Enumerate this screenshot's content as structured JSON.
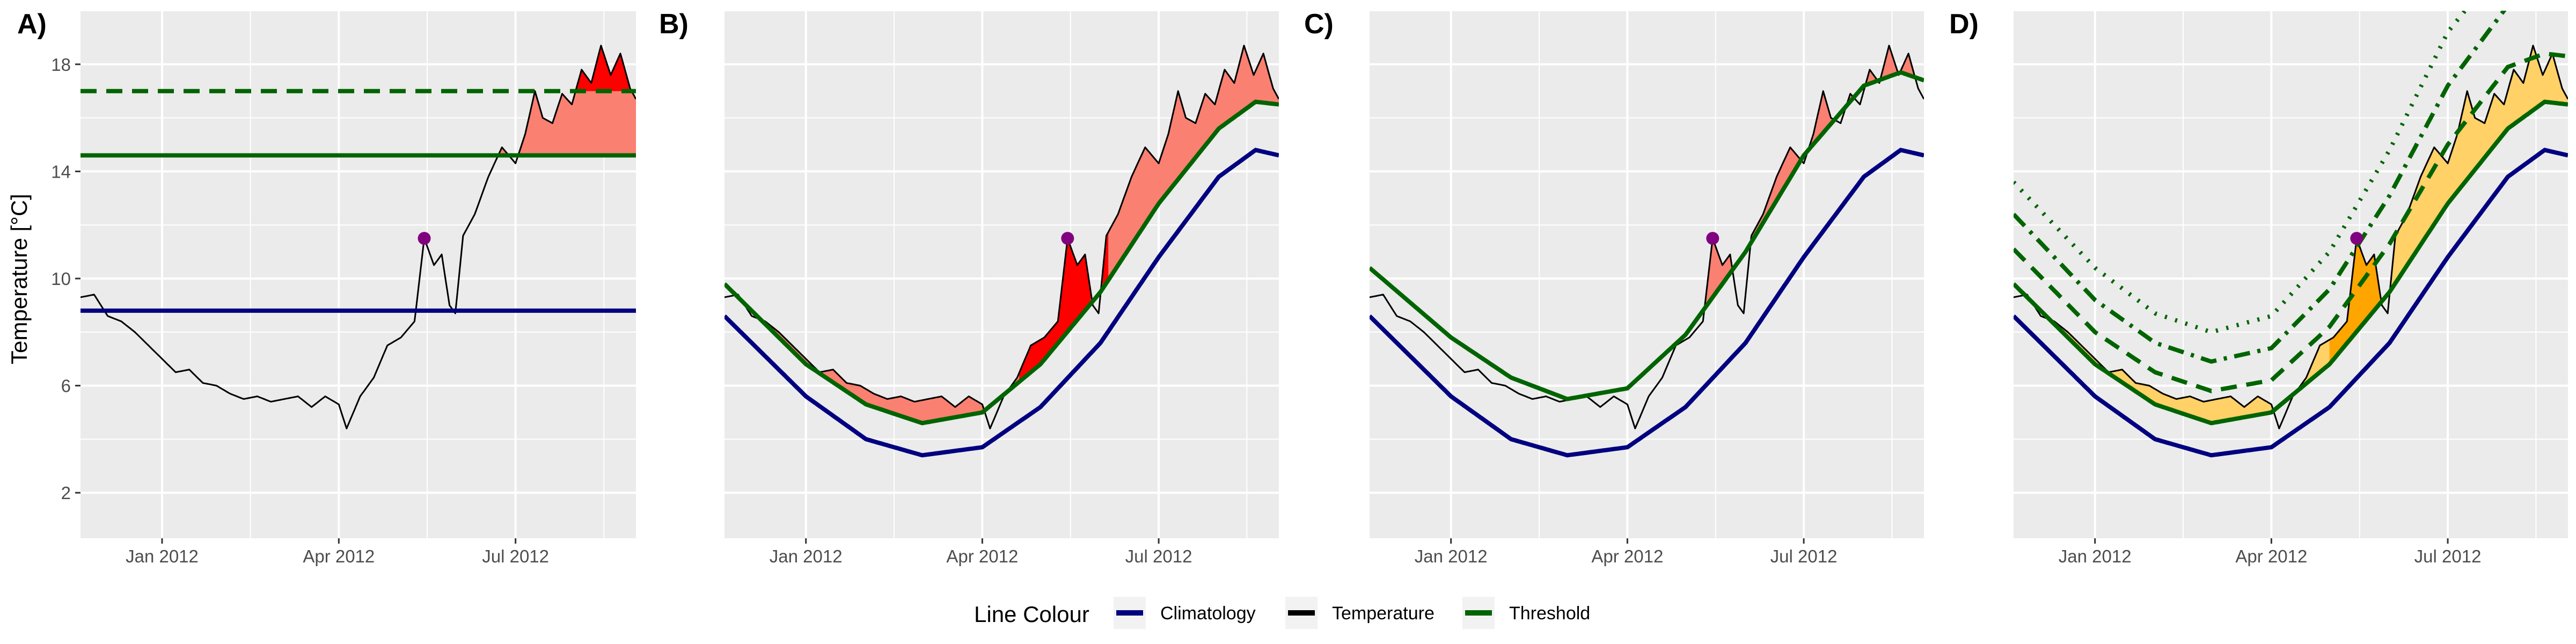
{
  "figure": {
    "ylabel": "Temperature [°C]",
    "legend": {
      "title": "Line Colour",
      "position": "bottom",
      "items": [
        {
          "label": "Climatology",
          "color": "#000080"
        },
        {
          "label": "Temperature",
          "color": "#000000"
        },
        {
          "label": "Threshold",
          "color": "#006400"
        }
      ]
    },
    "colors": {
      "panel_bg": "#ebebeb",
      "grid": "#ffffff",
      "event_light": "#fa8072",
      "event_strong": "#ff0000",
      "event_orange": "#ffa500",
      "event_gold": "#ffd166",
      "marker": "#800080"
    }
  },
  "chart_data": [
    {
      "panel": "A)",
      "type": "line",
      "x_type": "date",
      "xlim": [
        "2011-11-20",
        "2012-09-01"
      ],
      "ylim": [
        0.3,
        20.0
      ],
      "xticks": [
        {
          "date": "2012-01-01",
          "label": "Jan 2012"
        },
        {
          "date": "2012-04-01",
          "label": "Apr 2012"
        },
        {
          "date": "2012-07-01",
          "label": "Jul 2012"
        }
      ],
      "yticks": [
        2,
        6,
        10,
        14,
        18
      ],
      "show_y_tick_labels": true,
      "grid": true,
      "series": [
        {
          "name": "Climatology",
          "kind": "constant",
          "value": 8.8,
          "color": "#000080",
          "style": "solid"
        },
        {
          "name": "Threshold",
          "kind": "constant",
          "value": 14.6,
          "color": "#006400",
          "style": "solid"
        },
        {
          "kind": "constant",
          "value": 17.0,
          "color": "#006400",
          "style": "dashed"
        }
      ],
      "events": [
        {
          "from_level": 14.6,
          "color": "#fa8072"
        },
        {
          "from_level": 17.0,
          "color": "#ff0000"
        }
      ],
      "marker": {
        "date": "2012-05-15",
        "value": 11.5,
        "color": "#800080"
      }
    },
    {
      "panel": "B)",
      "type": "line",
      "x_type": "date",
      "xlim": [
        "2011-11-20",
        "2012-09-01"
      ],
      "ylim": [
        0.3,
        20.0
      ],
      "xticks": [
        {
          "date": "2012-01-01",
          "label": "Jan 2012"
        },
        {
          "date": "2012-04-01",
          "label": "Apr 2012"
        },
        {
          "date": "2012-07-01",
          "label": "Jul 2012"
        }
      ],
      "yticks": [
        2,
        6,
        10,
        14,
        18
      ],
      "show_y_tick_labels": false,
      "grid": true,
      "series": [
        {
          "name": "Climatology",
          "kind": "seasonal",
          "color": "#000080",
          "style": "solid",
          "points": [
            [
              "2011-11-20",
              8.6
            ],
            [
              "2012-01-01",
              5.6
            ],
            [
              "2012-02-01",
              4.0
            ],
            [
              "2012-03-01",
              3.4
            ],
            [
              "2012-04-01",
              3.7
            ],
            [
              "2012-05-01",
              5.2
            ],
            [
              "2012-06-01",
              7.6
            ],
            [
              "2012-07-01",
              10.8
            ],
            [
              "2012-08-01",
              13.8
            ],
            [
              "2012-08-20",
              14.8
            ],
            [
              "2012-09-01",
              14.6
            ]
          ]
        },
        {
          "name": "Threshold",
          "kind": "seasonal",
          "color": "#006400",
          "style": "solid",
          "points": [
            [
              "2011-11-20",
              9.8
            ],
            [
              "2012-01-01",
              6.8
            ],
            [
              "2012-02-01",
              5.3
            ],
            [
              "2012-03-01",
              4.6
            ],
            [
              "2012-04-01",
              5.0
            ],
            [
              "2012-05-01",
              6.8
            ],
            [
              "2012-06-01",
              9.5
            ],
            [
              "2012-07-01",
              12.8
            ],
            [
              "2012-08-01",
              15.6
            ],
            [
              "2012-08-20",
              16.6
            ],
            [
              "2012-09-01",
              16.5
            ]
          ]
        }
      ],
      "events": [
        {
          "from": "threshold",
          "color": "#fa8072"
        },
        {
          "from": "threshold",
          "color": "#ff0000",
          "between": [
            "2012-04-20",
            "2012-06-05"
          ]
        }
      ],
      "marker": {
        "date": "2012-05-15",
        "value": 11.5,
        "color": "#800080"
      }
    },
    {
      "panel": "C)",
      "type": "line",
      "x_type": "date",
      "xlim": [
        "2011-11-20",
        "2012-09-01"
      ],
      "ylim": [
        0.3,
        20.0
      ],
      "xticks": [
        {
          "date": "2012-01-01",
          "label": "Jan 2012"
        },
        {
          "date": "2012-04-01",
          "label": "Apr 2012"
        },
        {
          "date": "2012-07-01",
          "label": "Jul 2012"
        }
      ],
      "yticks": [
        2,
        6,
        10,
        14,
        18
      ],
      "show_y_tick_labels": false,
      "grid": true,
      "series": [
        {
          "name": "Climatology",
          "kind": "seasonal",
          "color": "#000080",
          "style": "solid",
          "points": [
            [
              "2011-11-20",
              8.6
            ],
            [
              "2012-01-01",
              5.6
            ],
            [
              "2012-02-01",
              4.0
            ],
            [
              "2012-03-01",
              3.4
            ],
            [
              "2012-04-01",
              3.7
            ],
            [
              "2012-05-01",
              5.2
            ],
            [
              "2012-06-01",
              7.6
            ],
            [
              "2012-07-01",
              10.8
            ],
            [
              "2012-08-01",
              13.8
            ],
            [
              "2012-08-20",
              14.8
            ],
            [
              "2012-09-01",
              14.6
            ]
          ]
        },
        {
          "name": "Threshold",
          "kind": "seasonal",
          "color": "#006400",
          "style": "solid",
          "points": [
            [
              "2011-11-20",
              10.4
            ],
            [
              "2012-01-01",
              7.8
            ],
            [
              "2012-02-01",
              6.3
            ],
            [
              "2012-03-01",
              5.5
            ],
            [
              "2012-04-01",
              5.9
            ],
            [
              "2012-05-01",
              7.9
            ],
            [
              "2012-06-01",
              11.0
            ],
            [
              "2012-07-01",
              14.6
            ],
            [
              "2012-08-01",
              17.2
            ],
            [
              "2012-08-20",
              17.7
            ],
            [
              "2012-09-01",
              17.4
            ]
          ]
        }
      ],
      "events": [
        {
          "from": "threshold",
          "color": "#fa8072"
        }
      ],
      "marker": {
        "date": "2012-05-15",
        "value": 11.5,
        "color": "#800080"
      }
    },
    {
      "panel": "D)",
      "type": "line",
      "x_type": "date",
      "xlim": [
        "2011-11-20",
        "2012-09-01"
      ],
      "ylim": [
        0.3,
        20.0
      ],
      "xticks": [
        {
          "date": "2012-01-01",
          "label": "Jan 2012"
        },
        {
          "date": "2012-04-01",
          "label": "Apr 2012"
        },
        {
          "date": "2012-07-01",
          "label": "Jul 2012"
        }
      ],
      "yticks": [
        2,
        6,
        10,
        14,
        18
      ],
      "show_y_tick_labels": false,
      "grid": true,
      "series": [
        {
          "name": "Climatology",
          "kind": "seasonal",
          "color": "#000080",
          "style": "solid",
          "points": [
            [
              "2011-11-20",
              8.6
            ],
            [
              "2012-01-01",
              5.6
            ],
            [
              "2012-02-01",
              4.0
            ],
            [
              "2012-03-01",
              3.4
            ],
            [
              "2012-04-01",
              3.7
            ],
            [
              "2012-05-01",
              5.2
            ],
            [
              "2012-06-01",
              7.6
            ],
            [
              "2012-07-01",
              10.8
            ],
            [
              "2012-08-01",
              13.8
            ],
            [
              "2012-08-20",
              14.8
            ],
            [
              "2012-09-01",
              14.6
            ]
          ]
        },
        {
          "name": "Threshold",
          "kind": "seasonal",
          "color": "#006400",
          "style": "solid",
          "points": [
            [
              "2011-11-20",
              9.8
            ],
            [
              "2012-01-01",
              6.8
            ],
            [
              "2012-02-01",
              5.3
            ],
            [
              "2012-03-01",
              4.6
            ],
            [
              "2012-04-01",
              5.0
            ],
            [
              "2012-05-01",
              6.8
            ],
            [
              "2012-06-01",
              9.5
            ],
            [
              "2012-07-01",
              12.8
            ],
            [
              "2012-08-01",
              15.6
            ],
            [
              "2012-08-20",
              16.6
            ],
            [
              "2012-09-01",
              16.5
            ]
          ]
        },
        {
          "kind": "seasonal",
          "color": "#006400",
          "style": "dashed",
          "points": [
            [
              "2011-11-20",
              11.1
            ],
            [
              "2012-01-01",
              8.0
            ],
            [
              "2012-02-01",
              6.5
            ],
            [
              "2012-03-01",
              5.8
            ],
            [
              "2012-04-01",
              6.2
            ],
            [
              "2012-05-01",
              8.2
            ],
            [
              "2012-06-01",
              11.3
            ],
            [
              "2012-07-01",
              15.0
            ],
            [
              "2012-08-01",
              17.9
            ],
            [
              "2012-08-20",
              18.4
            ],
            [
              "2012-09-01",
              18.3
            ]
          ]
        },
        {
          "kind": "seasonal",
          "color": "#006400",
          "style": "dashdot",
          "points": [
            [
              "2011-11-20",
              12.4
            ],
            [
              "2012-01-01",
              9.2
            ],
            [
              "2012-02-01",
              7.6
            ],
            [
              "2012-03-01",
              6.9
            ],
            [
              "2012-04-01",
              7.4
            ],
            [
              "2012-05-01",
              9.6
            ],
            [
              "2012-06-01",
              13.1
            ],
            [
              "2012-07-01",
              17.2
            ],
            [
              "2012-08-01",
              20.2
            ],
            [
              "2012-09-01",
              20.5
            ]
          ]
        },
        {
          "kind": "seasonal",
          "color": "#006400",
          "style": "dotted",
          "points": [
            [
              "2011-11-20",
              13.6
            ],
            [
              "2012-01-01",
              10.4
            ],
            [
              "2012-02-01",
              8.7
            ],
            [
              "2012-03-01",
              8.0
            ],
            [
              "2012-04-01",
              8.6
            ],
            [
              "2012-05-01",
              11.0
            ],
            [
              "2012-06-01",
              14.8
            ],
            [
              "2012-07-01",
              19.2
            ],
            [
              "2012-08-01",
              22.0
            ],
            [
              "2012-09-01",
              22.5
            ]
          ]
        }
      ],
      "events": [
        {
          "from": "threshold",
          "color": "#ffd166"
        },
        {
          "from": "threshold",
          "color": "#ffa500",
          "between": [
            "2012-05-01",
            "2012-06-01"
          ]
        }
      ],
      "marker": {
        "date": "2012-05-15",
        "value": 11.5,
        "color": "#800080"
      }
    }
  ],
  "temperature": {
    "name": "Temperature",
    "color": "#000000",
    "points": [
      [
        "2011-11-20",
        9.3
      ],
      [
        "2011-11-27",
        9.4
      ],
      [
        "2011-12-04",
        8.6
      ],
      [
        "2011-12-11",
        8.4
      ],
      [
        "2011-12-18",
        8.0
      ],
      [
        "2011-12-25",
        7.5
      ],
      [
        "2012-01-01",
        7.0
      ],
      [
        "2012-01-08",
        6.5
      ],
      [
        "2012-01-15",
        6.6
      ],
      [
        "2012-01-22",
        6.1
      ],
      [
        "2012-01-29",
        6.0
      ],
      [
        "2012-02-05",
        5.7
      ],
      [
        "2012-02-12",
        5.5
      ],
      [
        "2012-02-19",
        5.6
      ],
      [
        "2012-02-26",
        5.4
      ],
      [
        "2012-03-04",
        5.5
      ],
      [
        "2012-03-11",
        5.6
      ],
      [
        "2012-03-18",
        5.2
      ],
      [
        "2012-03-25",
        5.6
      ],
      [
        "2012-04-01",
        5.3
      ],
      [
        "2012-04-05",
        4.4
      ],
      [
        "2012-04-12",
        5.6
      ],
      [
        "2012-04-19",
        6.3
      ],
      [
        "2012-04-26",
        7.5
      ],
      [
        "2012-05-03",
        7.8
      ],
      [
        "2012-05-10",
        8.4
      ],
      [
        "2012-05-15",
        11.5
      ],
      [
        "2012-05-20",
        10.5
      ],
      [
        "2012-05-24",
        10.9
      ],
      [
        "2012-05-28",
        9.0
      ],
      [
        "2012-05-31",
        8.7
      ],
      [
        "2012-06-04",
        11.6
      ],
      [
        "2012-06-10",
        12.4
      ],
      [
        "2012-06-17",
        13.8
      ],
      [
        "2012-06-24",
        14.9
      ],
      [
        "2012-07-01",
        14.3
      ],
      [
        "2012-07-06",
        15.4
      ],
      [
        "2012-07-11",
        17.0
      ],
      [
        "2012-07-15",
        16.0
      ],
      [
        "2012-07-20",
        15.8
      ],
      [
        "2012-07-25",
        16.9
      ],
      [
        "2012-07-30",
        16.5
      ],
      [
        "2012-08-04",
        17.8
      ],
      [
        "2012-08-09",
        17.3
      ],
      [
        "2012-08-14",
        18.7
      ],
      [
        "2012-08-19",
        17.6
      ],
      [
        "2012-08-24",
        18.4
      ],
      [
        "2012-08-29",
        17.1
      ],
      [
        "2012-09-01",
        16.7
      ]
    ]
  }
}
